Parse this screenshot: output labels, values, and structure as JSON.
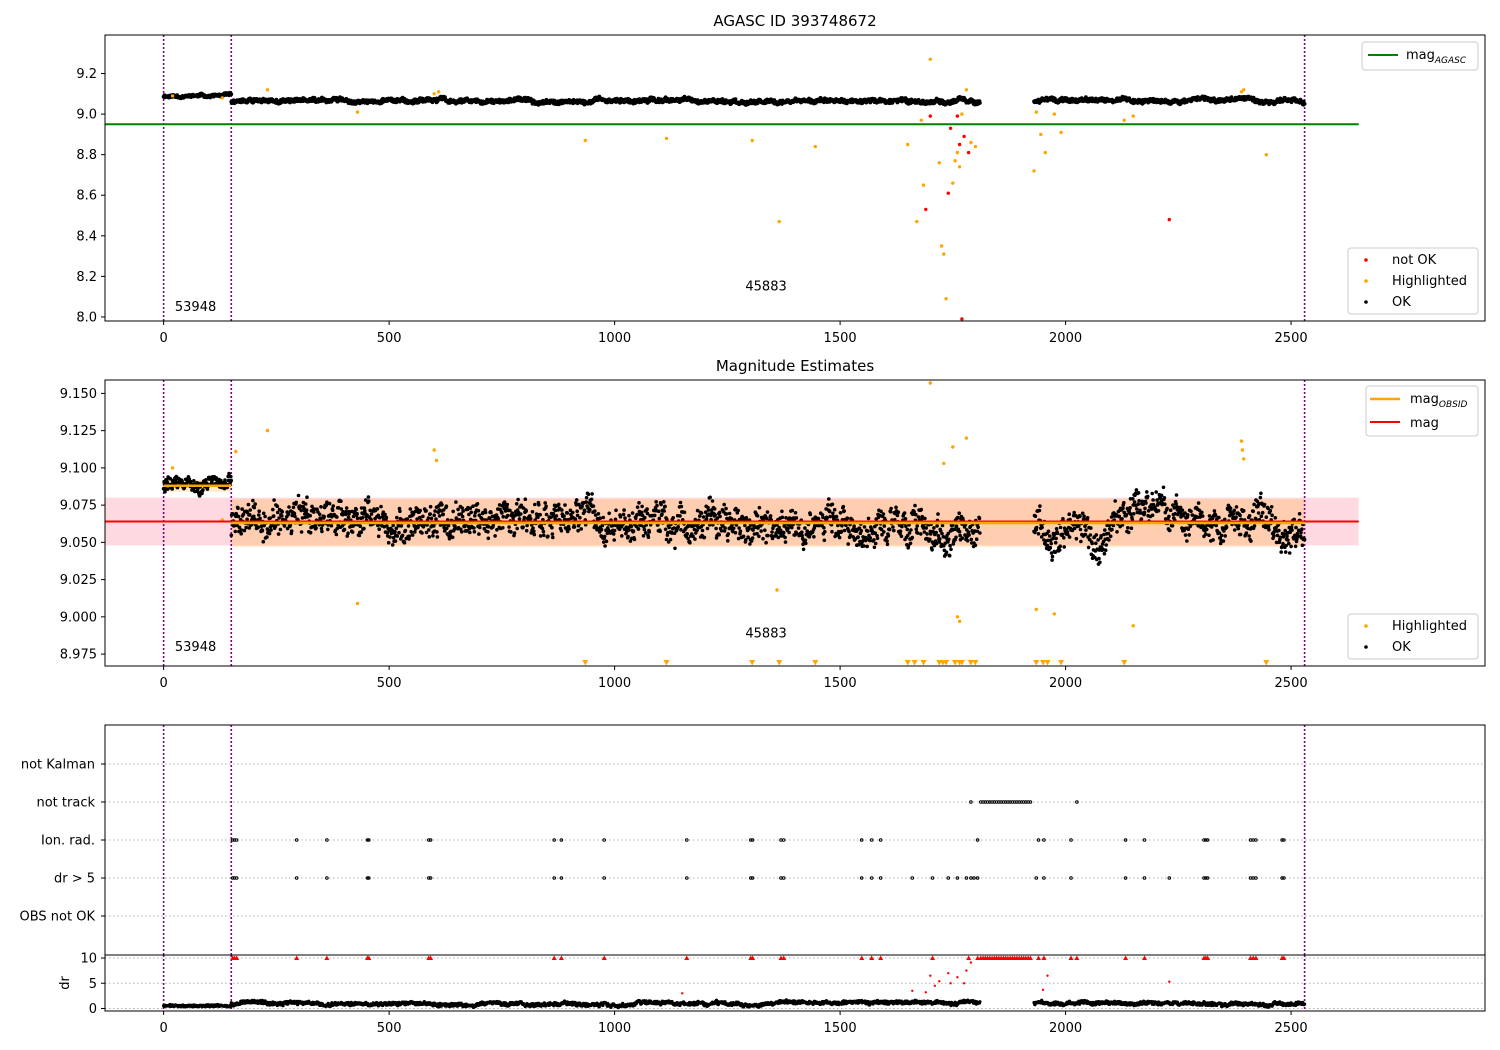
{
  "chart_data": [
    {
      "id": "agasc",
      "type": "scatter",
      "title": "AGASC ID 393748672",
      "xlabel": "",
      "ylabel": "",
      "xlim": [
        -130,
        2930
      ],
      "ylim": [
        7.98,
        9.39
      ],
      "x_ticks": [
        0,
        500,
        1000,
        1500,
        2000,
        2500
      ],
      "y_ticks": [
        8.0,
        8.2,
        8.4,
        8.6,
        8.8,
        9.0,
        9.2
      ],
      "y_tick_labels": [
        "8.0",
        "8.2",
        "8.4",
        "8.6",
        "8.8",
        "9.0",
        "9.2"
      ],
      "obsid_boundaries": [
        0,
        150,
        2530
      ],
      "obsid_labels": [
        {
          "x": 25,
          "y": 8.03,
          "text": "53948"
        },
        {
          "x": 1290,
          "y": 8.13,
          "text": "45883"
        }
      ],
      "reference_lines": [
        {
          "name": "mag_AGASC",
          "y": 8.95,
          "x": [
            -130,
            2650
          ],
          "color": "#008000"
        }
      ],
      "series": [
        {
          "name": "not OK",
          "color": "#ff0000",
          "points": [
            [
              1700,
              8.99
            ],
            [
              1740,
              8.61
            ],
            [
              1745,
              8.93
            ],
            [
              1760,
              8.99
            ],
            [
              1765,
              8.85
            ],
            [
              1770,
              7.99
            ],
            [
              1775,
              8.89
            ],
            [
              1690,
              8.53
            ],
            [
              2230,
              8.48
            ],
            [
              1785,
              8.81
            ]
          ]
        },
        {
          "name": "Highlighted",
          "color": "#ffa500",
          "points": [
            [
              20,
              9.09
            ],
            [
              130,
              9.08
            ],
            [
              230,
              9.12
            ],
            [
              430,
              9.01
            ],
            [
              600,
              9.1
            ],
            [
              610,
              9.11
            ],
            [
              935,
              8.87
            ],
            [
              1115,
              8.88
            ],
            [
              1305,
              8.87
            ],
            [
              1365,
              8.47
            ],
            [
              1445,
              8.84
            ],
            [
              1650,
              8.85
            ],
            [
              1670,
              8.47
            ],
            [
              1680,
              8.97
            ],
            [
              1685,
              8.65
            ],
            [
              1700,
              9.27
            ],
            [
              1720,
              8.76
            ],
            [
              1725,
              8.35
            ],
            [
              1730,
              8.31
            ],
            [
              1735,
              8.09
            ],
            [
              1750,
              8.66
            ],
            [
              1755,
              8.77
            ],
            [
              1760,
              8.81
            ],
            [
              1765,
              8.74
            ],
            [
              1770,
              9.0
            ],
            [
              1780,
              9.12
            ],
            [
              1790,
              8.86
            ],
            [
              1800,
              8.84
            ],
            [
              1930,
              8.72
            ],
            [
              1935,
              9.01
            ],
            [
              1945,
              8.9
            ],
            [
              1955,
              8.81
            ],
            [
              1975,
              9.0
            ],
            [
              1990,
              8.91
            ],
            [
              2130,
              8.97
            ],
            [
              2150,
              8.99
            ],
            [
              2390,
              9.11
            ],
            [
              2395,
              9.12
            ],
            [
              2445,
              8.8
            ]
          ]
        },
        {
          "name": "OK",
          "color": "#000000",
          "segments": [
            {
              "x0": 0,
              "x1": 150,
              "step": 1,
              "level": 9.09,
              "spread": 0.012
            },
            {
              "x0": 150,
              "x1": 1810,
              "step": 1,
              "level": 9.065,
              "spread": 0.018
            },
            {
              "x0": 1930,
              "x1": 2530,
              "step": 1,
              "level": 9.065,
              "spread": 0.018
            }
          ]
        }
      ],
      "legend_top": {
        "placement": "upper right",
        "entries": [
          {
            "label": "mag",
            "sub": "AGASC",
            "color": "#008000"
          }
        ]
      },
      "legend_bottom": {
        "placement": "lower right",
        "entries": [
          {
            "label": "not OK",
            "color": "#ff0000"
          },
          {
            "label": "Highlighted",
            "color": "#ffa500"
          },
          {
            "label": "OK",
            "color": "#000000"
          }
        ]
      }
    },
    {
      "id": "estimates",
      "type": "scatter",
      "title": "Magnitude Estimates",
      "xlabel": "",
      "ylabel": "",
      "xlim": [
        -130,
        2930
      ],
      "ylim": [
        8.967,
        9.159
      ],
      "x_ticks": [
        0,
        500,
        1000,
        1500,
        2000,
        2500
      ],
      "y_ticks": [
        8.975,
        9.0,
        9.025,
        9.05,
        9.075,
        9.1,
        9.125,
        9.15
      ],
      "y_tick_labels": [
        "8.975",
        "9.000",
        "9.025",
        "9.050",
        "9.075",
        "9.100",
        "9.125",
        "9.150"
      ],
      "obsid_boundaries": [
        0,
        150,
        2530
      ],
      "obsid_labels": [
        {
          "x": 25,
          "y": 8.977,
          "text": "53948"
        },
        {
          "x": 1290,
          "y": 8.986,
          "text": "45883"
        }
      ],
      "mag": {
        "name": "mag",
        "y": 9.064,
        "band": [
          9.048,
          9.08
        ],
        "x": [
          -130,
          2650
        ],
        "color": "#ff0000",
        "band_color": "#ffc0cb"
      },
      "mag_obsid": [
        {
          "x": [
            0,
            150
          ],
          "y": 9.088,
          "band": [
            9.084,
            9.092
          ],
          "color": "#ffa500"
        },
        {
          "x": [
            150,
            2530
          ],
          "y": 9.063,
          "band": [
            9.047,
            9.079
          ],
          "color": "#ffa500"
        }
      ],
      "series": [
        {
          "name": "Highlighted",
          "color": "#ffa500",
          "points": [
            [
              20,
              9.1
            ],
            [
              130,
              9.065
            ],
            [
              160,
              9.111
            ],
            [
              230,
              9.125
            ],
            [
              430,
              9.009
            ],
            [
              600,
              9.112
            ],
            [
              605,
              9.105
            ],
            [
              1700,
              9.157
            ],
            [
              1730,
              9.103
            ],
            [
              1750,
              9.114
            ],
            [
              1760,
              9.0
            ],
            [
              1765,
              8.997
            ],
            [
              1780,
              9.12
            ],
            [
              1935,
              9.005
            ],
            [
              1975,
              9.002
            ],
            [
              2150,
              8.994
            ],
            [
              2390,
              9.118
            ],
            [
              2392,
              9.112
            ],
            [
              2395,
              9.106
            ],
            [
              1360,
              9.018
            ]
          ]
        },
        {
          "name": "Highlighted (below axis)",
          "color": "#ffa500",
          "marker": "v",
          "x": [
            935,
            1115,
            1305,
            1365,
            1445,
            1650,
            1665,
            1685,
            1720,
            1728,
            1735,
            1755,
            1765,
            1770,
            1790,
            1800,
            1935,
            1950,
            1960,
            1990,
            2130,
            2445
          ],
          "y": 8.969
        },
        {
          "name": "OK",
          "color": "#000000",
          "segments": [
            {
              "x0": 0,
              "x1": 150,
              "step": 1,
              "level": 9.09,
              "spread": 0.008
            },
            {
              "x0": 150,
              "x1": 1810,
              "step": 1,
              "level": 9.062,
              "spread": 0.018
            },
            {
              "x0": 1930,
              "x1": 2530,
              "step": 1,
              "level": 9.063,
              "spread": 0.018
            }
          ]
        }
      ],
      "legend_top": {
        "placement": "upper right",
        "entries": [
          {
            "label": "mag",
            "sub": "OBSID",
            "color": "#ffa500"
          },
          {
            "label": "mag",
            "sub": "",
            "color": "#ff0000"
          }
        ]
      },
      "legend_bottom": {
        "placement": "lower right",
        "entries": [
          {
            "label": "Highlighted",
            "color": "#ffa500"
          },
          {
            "label": "OK",
            "color": "#000000"
          }
        ]
      }
    },
    {
      "id": "flags",
      "type": "scatter",
      "title": "",
      "xlim": [
        -130,
        2930
      ],
      "categories": [
        "not Kalman",
        "not track",
        "Ion. rad.",
        "dr > 5",
        "OBS not OK"
      ],
      "obsid_boundaries": [
        0,
        150,
        2530
      ],
      "flags": [
        {
          "category": "not Kalman",
          "x": []
        },
        {
          "category": "not track",
          "x": [
            1790,
            1812,
            1817,
            1822,
            1827,
            1832,
            1837,
            1842,
            1847,
            1852,
            1857,
            1862,
            1867,
            1872,
            1877,
            1882,
            1887,
            1892,
            1897,
            1902,
            1907,
            1912,
            1917,
            1922,
            2025
          ]
        },
        {
          "category": "Ion. rad.",
          "x": [
            153,
            157,
            162,
            295,
            362,
            452,
            455,
            588,
            592,
            866,
            882,
            977,
            1160,
            1302,
            1306,
            1369,
            1375,
            1548,
            1570,
            1590,
            1805,
            1940,
            1952,
            2012,
            2133,
            2175,
            2307,
            2311,
            2315,
            2410,
            2416,
            2422,
            2480,
            2484
          ]
        },
        {
          "category": "dr > 5",
          "x": [
            153,
            157,
            162,
            295,
            362,
            452,
            455,
            588,
            592,
            866,
            882,
            977,
            1160,
            1302,
            1306,
            1369,
            1375,
            1548,
            1570,
            1590,
            1660,
            1705,
            1740,
            1760,
            1780,
            1790,
            1797,
            1805,
            1935,
            1952,
            2012,
            2133,
            2175,
            2230,
            2307,
            2311,
            2315,
            2410,
            2416,
            2422,
            2480,
            2484
          ]
        },
        {
          "category": "OBS not OK",
          "x": []
        }
      ]
    },
    {
      "id": "dr",
      "type": "scatter",
      "title": "",
      "xlabel": "",
      "ylabel": "dr",
      "xlim": [
        -130,
        2930
      ],
      "ylim": [
        -0.5,
        10.6
      ],
      "x_ticks": [
        0,
        500,
        1000,
        1500,
        2000,
        2500
      ],
      "y_ticks": [
        0,
        5,
        10
      ],
      "y_tick_labels": [
        "0",
        "5",
        "10"
      ],
      "obsid_boundaries": [
        0,
        150,
        2530
      ],
      "clipped_triangles": {
        "color": "#ff0000",
        "y": 10,
        "x": [
          153,
          157,
          162,
          295,
          362,
          452,
          455,
          588,
          592,
          866,
          882,
          977,
          1160,
          1302,
          1306,
          1369,
          1375,
          1548,
          1570,
          1590,
          1705,
          1785,
          1805,
          1812,
          1817,
          1822,
          1827,
          1832,
          1837,
          1842,
          1847,
          1852,
          1857,
          1862,
          1867,
          1872,
          1877,
          1882,
          1887,
          1892,
          1897,
          1902,
          1907,
          1912,
          1917,
          1922,
          1940,
          1952,
          2012,
          2025,
          2133,
          2175,
          2307,
          2311,
          2315,
          2410,
          2416,
          2422,
          2480,
          2484
        ]
      },
      "series": [
        {
          "name": "dr (large)",
          "color": "#ff0000",
          "points": [
            [
              1150,
              3
            ],
            [
              1660,
              3.5
            ],
            [
              1690,
              3.2
            ],
            [
              1700,
              6.5
            ],
            [
              1710,
              4.5
            ],
            [
              1720,
              5.4
            ],
            [
              1740,
              7
            ],
            [
              1745,
              5
            ],
            [
              1760,
              6.2
            ],
            [
              1775,
              5
            ],
            [
              1780,
              7.5
            ],
            [
              1790,
              9.1
            ],
            [
              1950,
              3.7
            ],
            [
              1960,
              6.5
            ],
            [
              2230,
              5.3
            ]
          ]
        },
        {
          "name": "dr",
          "color": "#000000",
          "segments": [
            {
              "x0": 0,
              "x1": 150,
              "step": 1,
              "level": 0.5,
              "spread": 0.35
            },
            {
              "x0": 150,
              "x1": 1810,
              "step": 1,
              "level": 1.0,
              "spread": 0.6
            },
            {
              "x0": 1930,
              "x1": 2530,
              "step": 1,
              "level": 1.0,
              "spread": 0.6
            }
          ]
        }
      ]
    }
  ]
}
